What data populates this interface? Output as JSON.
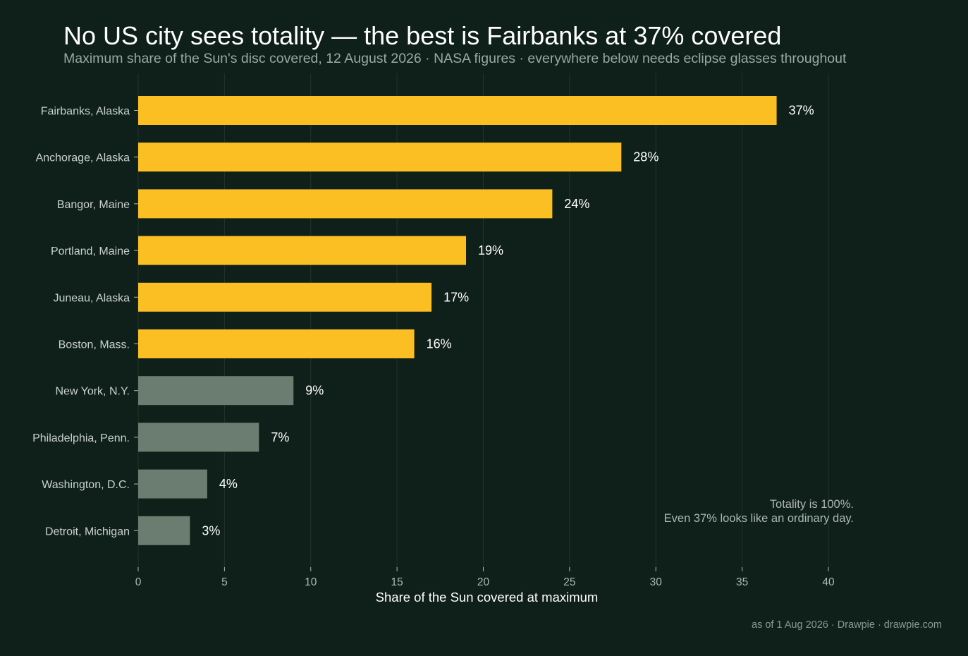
{
  "title": "No US city sees totality — the best is Fairbanks at 37% covered",
  "subtitle": "Maximum share of the Sun's disc covered, 12 August 2026 · NASA figures · everywhere below needs eclipse glasses throughout",
  "footer": "as of 1 Aug 2026  ·  Drawpie · drawpie.com",
  "colors": {
    "background": "#0f1f19",
    "highlight": "#fbbf24",
    "muted": "#6b7d70",
    "grid": "#22342c"
  },
  "chart_data": {
    "type": "bar",
    "orientation": "horizontal",
    "categories": [
      "Fairbanks, Alaska",
      "Anchorage, Alaska",
      "Bangor, Maine",
      "Portland, Maine",
      "Juneau, Alaska",
      "Boston, Mass.",
      "New York, N.Y.",
      "Philadelphia, Penn.",
      "Washington, D.C.",
      "Detroit, Michigan"
    ],
    "values": [
      37,
      28,
      24,
      19,
      17,
      16,
      9,
      7,
      4,
      3
    ],
    "value_labels": [
      "37%",
      "28%",
      "24%",
      "19%",
      "17%",
      "16%",
      "9%",
      "7%",
      "4%",
      "3%"
    ],
    "highlighted": [
      true,
      true,
      true,
      true,
      true,
      true,
      false,
      false,
      false,
      false
    ],
    "xlabel": "Share of the Sun covered at maximum",
    "ylabel": "",
    "xlim": [
      0,
      40
    ],
    "xticks": [
      0,
      5,
      10,
      15,
      20,
      25,
      30,
      35,
      40
    ],
    "grid": true,
    "annotation": [
      "Totality is 100%.",
      "Even 37% looks like an ordinary day."
    ]
  }
}
